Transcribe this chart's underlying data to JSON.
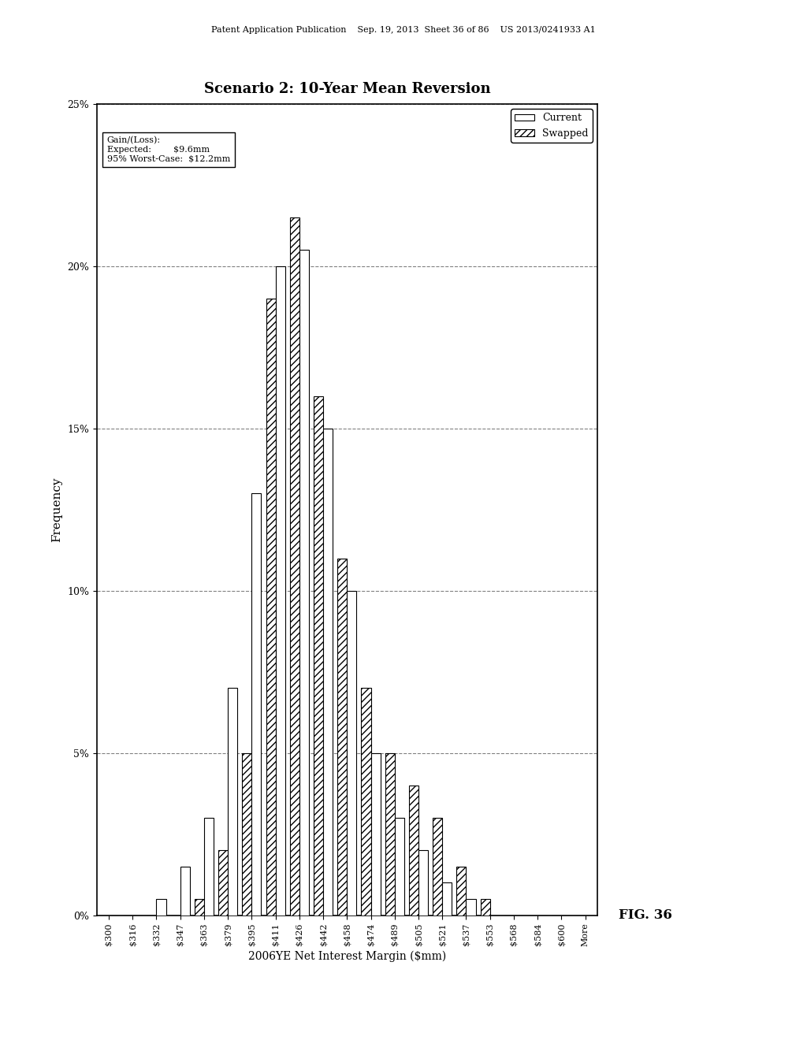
{
  "title": "Scenario 2: 10-Year Mean Reversion",
  "xlabel": "2006YE Net Interest Margin ($mm)",
  "ylabel": "Frequency",
  "categories": [
    "$300",
    "$316",
    "$332",
    "$347",
    "$363",
    "$379",
    "$395",
    "$411",
    "$426",
    "$442",
    "$458",
    "$474",
    "$489",
    "$505",
    "$521",
    "$537",
    "$553",
    "$568",
    "$584",
    "$600",
    "More"
  ],
  "current_values": [
    0.0,
    0.0,
    0.5,
    1.5,
    3.0,
    7.0,
    13.0,
    20.0,
    20.5,
    15.0,
    10.0,
    5.0,
    3.0,
    2.0,
    1.0,
    0.5,
    0.0,
    0.0,
    0.0,
    0.0,
    0.0
  ],
  "swapped_values": [
    0.0,
    0.0,
    0.0,
    0.0,
    0.5,
    2.0,
    5.0,
    19.0,
    21.5,
    16.0,
    11.0,
    7.0,
    5.0,
    4.0,
    3.0,
    1.5,
    0.5,
    0.0,
    0.0,
    0.0,
    0.0
  ],
  "gain_loss_label": "Gain/(Loss):",
  "expected_label": "Expected:",
  "worst_case_label": "95% Worst-Case:",
  "expected_current": "$9.6mm",
  "worst_case_current": "$12.2mm",
  "fig_label": "FIG. 36",
  "ylim": [
    0,
    25
  ],
  "yticks": [
    0,
    5,
    10,
    15,
    20,
    25
  ],
  "ytick_labels": [
    "0%",
    "5%",
    "10%",
    "15%",
    "20%",
    "25%"
  ],
  "bar_width": 0.8,
  "current_color": "white",
  "current_edgecolor": "black",
  "swapped_hatch": "////",
  "swapped_edgecolor": "black",
  "swapped_facecolor": "white",
  "background_color": "white",
  "dashed_line_positions": [
    5.0,
    10.0,
    15.0,
    20.0,
    25.0
  ],
  "header_text": "Patent Application Publication    Sep. 19, 2013  Sheet 36 of 86    US 2013/0241933 A1"
}
